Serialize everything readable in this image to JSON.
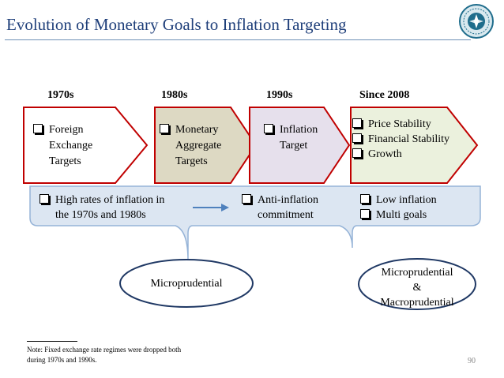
{
  "title": "Evolution of Monetary Goals to Inflation Targeting",
  "eras": [
    "1970s",
    "1980s",
    "1990s",
    "Since 2008"
  ],
  "boxes": [
    {
      "items": [
        {
          "first": "Foreign",
          "rest": [
            "Exchange",
            "Targets"
          ]
        }
      ],
      "fill": "#ffffff"
    },
    {
      "items": [
        {
          "first": "Monetary",
          "rest": [
            "Aggregate",
            "Targets"
          ]
        }
      ],
      "fill": "#ddd9c3"
    },
    {
      "items": [
        {
          "first": "Inflation",
          "rest": [
            "Target"
          ]
        }
      ],
      "fill": "#e6e0ec"
    },
    {
      "items": [
        {
          "first": "Price Stability",
          "rest": []
        },
        {
          "first": "Financial Stability",
          "rest": []
        },
        {
          "first": "Growth",
          "rest": []
        }
      ],
      "fill": "#ebf1dd"
    }
  ],
  "band": {
    "left_first": "High rates of inflation in",
    "left_rest": "the 1970s and 1980s",
    "mid_first": "Anti-inflation",
    "mid_rest": "commitment",
    "right_1": "Low inflation",
    "right_2": "Multi goals",
    "fill": "#dce6f2"
  },
  "ellipses": {
    "left": "Microprudential",
    "right_1": "Microprudential",
    "right_2": "&",
    "right_3": "Macroprudential"
  },
  "note": {
    "line1": "Note: Fixed exchange rate regimes were dropped both",
    "line2": "during 1970s and 1990s."
  },
  "page_number": "90",
  "colors": {
    "title": "#1f3f7a",
    "box_border": "#c00000",
    "band_border": "#95b3d7",
    "ellipse_border": "#1f3864",
    "arrow": "#4f81bd",
    "logo": "#1f6d8c"
  }
}
